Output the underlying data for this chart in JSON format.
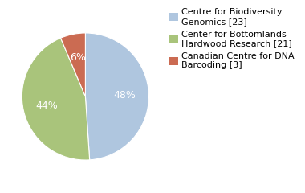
{
  "labels": [
    "Centre for Biodiversity\nGenomics [23]",
    "Center for Bottomlands\nHardwood Research [21]",
    "Canadian Centre for DNA\nBarcoding [3]"
  ],
  "values": [
    23,
    21,
    3
  ],
  "slice_colors": [
    "#afc6df",
    "#a9c47b",
    "#cb6b52"
  ],
  "pct_labels": [
    "48%",
    "44%",
    "6%"
  ],
  "pct_fontsize": 9,
  "legend_fontsize": 8,
  "background_color": "#ffffff"
}
